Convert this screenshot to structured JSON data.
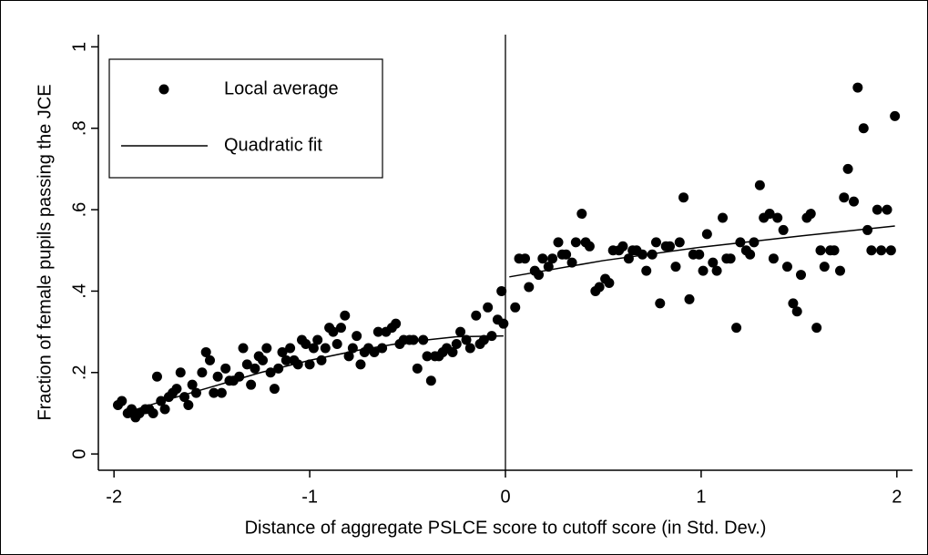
{
  "chart_data": {
    "type": "scatter",
    "xlabel": "Distance of aggregate PSLCE score to cutoff score (in Std. Dev.)",
    "ylabel": "Fraction of female pupils passing the JCE",
    "xlim": [
      -2.08,
      2.08
    ],
    "ylim": [
      -0.04,
      1.03
    ],
    "xticks": [
      -2,
      -1,
      0,
      1,
      2
    ],
    "yticks": [
      0,
      {
        "value": 0.2,
        "label": ".2"
      },
      {
        "value": 0.4,
        "label": ".4"
      },
      {
        "value": 0.6,
        "label": ".6"
      },
      {
        "value": 0.8,
        "label": ".8"
      },
      1
    ],
    "vline": 0,
    "legend": "top-left",
    "series": [
      {
        "name": "Local average",
        "color": "#000000",
        "kind": "points",
        "x": [
          -1.98,
          -1.96,
          -1.93,
          -1.91,
          -1.89,
          -1.87,
          -1.84,
          -1.82,
          -1.8,
          -1.78,
          -1.76,
          -1.74,
          -1.72,
          -1.7,
          -1.68,
          -1.66,
          -1.64,
          -1.62,
          -1.6,
          -1.58,
          -1.55,
          -1.53,
          -1.51,
          -1.49,
          -1.47,
          -1.45,
          -1.43,
          -1.41,
          -1.39,
          -1.36,
          -1.34,
          -1.32,
          -1.3,
          -1.28,
          -1.26,
          -1.24,
          -1.22,
          -1.2,
          -1.18,
          -1.16,
          -1.14,
          -1.12,
          -1.1,
          -1.08,
          -1.06,
          -1.04,
          -1.02,
          -1.0,
          -0.98,
          -0.96,
          -0.94,
          -0.92,
          -0.9,
          -0.88,
          -0.86,
          -0.84,
          -0.82,
          -0.8,
          -0.78,
          -0.76,
          -0.74,
          -0.72,
          -0.7,
          -0.67,
          -0.65,
          -0.63,
          -0.61,
          -0.58,
          -0.56,
          -0.54,
          -0.52,
          -0.49,
          -0.47,
          -0.45,
          -0.42,
          -0.4,
          -0.38,
          -0.36,
          -0.34,
          -0.32,
          -0.3,
          -0.27,
          -0.25,
          -0.23,
          -0.2,
          -0.18,
          -0.15,
          -0.13,
          -0.11,
          -0.09,
          -0.07,
          -0.04,
          -0.02,
          -0.01,
          0.05,
          0.07,
          0.1,
          0.12,
          0.15,
          0.17,
          0.19,
          0.22,
          0.24,
          0.27,
          0.29,
          0.31,
          0.34,
          0.36,
          0.39,
          0.41,
          0.43,
          0.46,
          0.48,
          0.51,
          0.53,
          0.55,
          0.58,
          0.6,
          0.63,
          0.65,
          0.67,
          0.7,
          0.72,
          0.75,
          0.77,
          0.79,
          0.82,
          0.84,
          0.87,
          0.89,
          0.91,
          0.94,
          0.96,
          0.99,
          1.01,
          1.03,
          1.06,
          1.08,
          1.11,
          1.13,
          1.15,
          1.18,
          1.2,
          1.23,
          1.25,
          1.27,
          1.3,
          1.32,
          1.35,
          1.37,
          1.39,
          1.42,
          1.44,
          1.47,
          1.49,
          1.51,
          1.54,
          1.56,
          1.59,
          1.61,
          1.63,
          1.66,
          1.68,
          1.71,
          1.73,
          1.75,
          1.78,
          1.8,
          1.83,
          1.85,
          1.87,
          1.9,
          1.92,
          1.95,
          1.97,
          1.99
        ],
        "values": [
          0.12,
          0.13,
          0.1,
          0.11,
          0.09,
          0.1,
          0.11,
          0.11,
          0.1,
          0.19,
          0.13,
          0.11,
          0.14,
          0.15,
          0.16,
          0.2,
          0.14,
          0.12,
          0.17,
          0.15,
          0.2,
          0.25,
          0.23,
          0.15,
          0.19,
          0.15,
          0.21,
          0.18,
          0.18,
          0.19,
          0.26,
          0.22,
          0.17,
          0.21,
          0.24,
          0.23,
          0.26,
          0.2,
          0.16,
          0.21,
          0.25,
          0.23,
          0.26,
          0.23,
          0.22,
          0.28,
          0.27,
          0.22,
          0.26,
          0.28,
          0.23,
          0.26,
          0.31,
          0.3,
          0.27,
          0.31,
          0.34,
          0.24,
          0.26,
          0.29,
          0.22,
          0.25,
          0.26,
          0.25,
          0.3,
          0.26,
          0.3,
          0.31,
          0.32,
          0.27,
          0.28,
          0.28,
          0.28,
          0.21,
          0.28,
          0.24,
          0.18,
          0.24,
          0.24,
          0.25,
          0.26,
          0.25,
          0.27,
          0.3,
          0.28,
          0.26,
          0.34,
          0.27,
          0.28,
          0.36,
          0.29,
          0.33,
          0.4,
          0.32,
          0.36,
          0.48,
          0.48,
          0.41,
          0.45,
          0.44,
          0.48,
          0.46,
          0.48,
          0.52,
          0.49,
          0.49,
          0.47,
          0.52,
          0.59,
          0.52,
          0.51,
          0.4,
          0.41,
          0.43,
          0.42,
          0.5,
          0.5,
          0.51,
          0.48,
          0.5,
          0.5,
          0.49,
          0.45,
          0.49,
          0.52,
          0.37,
          0.51,
          0.51,
          0.46,
          0.52,
          0.63,
          0.38,
          0.49,
          0.49,
          0.45,
          0.54,
          0.47,
          0.45,
          0.58,
          0.48,
          0.48,
          0.31,
          0.52,
          0.5,
          0.49,
          0.52,
          0.66,
          0.58,
          0.59,
          0.48,
          0.58,
          0.55,
          0.46,
          0.37,
          0.35,
          0.44,
          0.58,
          0.59,
          0.31,
          0.5,
          0.46,
          0.5,
          0.5,
          0.45,
          0.63,
          0.7,
          0.62,
          0.9,
          0.8,
          0.55,
          0.5,
          0.6,
          0.5,
          0.6,
          0.5,
          0.83
        ]
      },
      {
        "name": "Quadratic fit",
        "color": "#000000",
        "kind": "line",
        "x": [
          -1.95,
          -1.75,
          -1.5,
          -1.25,
          -1,
          -0.75,
          -0.5,
          -0.25,
          -0.01,
          0,
          0.02,
          0.5,
          1,
          1.5,
          1.99
        ],
        "values": [
          0.1,
          0.13,
          0.165,
          0.2,
          0.23,
          0.255,
          0.275,
          0.288,
          0.29,
          null,
          0.435,
          0.475,
          0.508,
          0.535,
          0.56
        ]
      }
    ]
  }
}
